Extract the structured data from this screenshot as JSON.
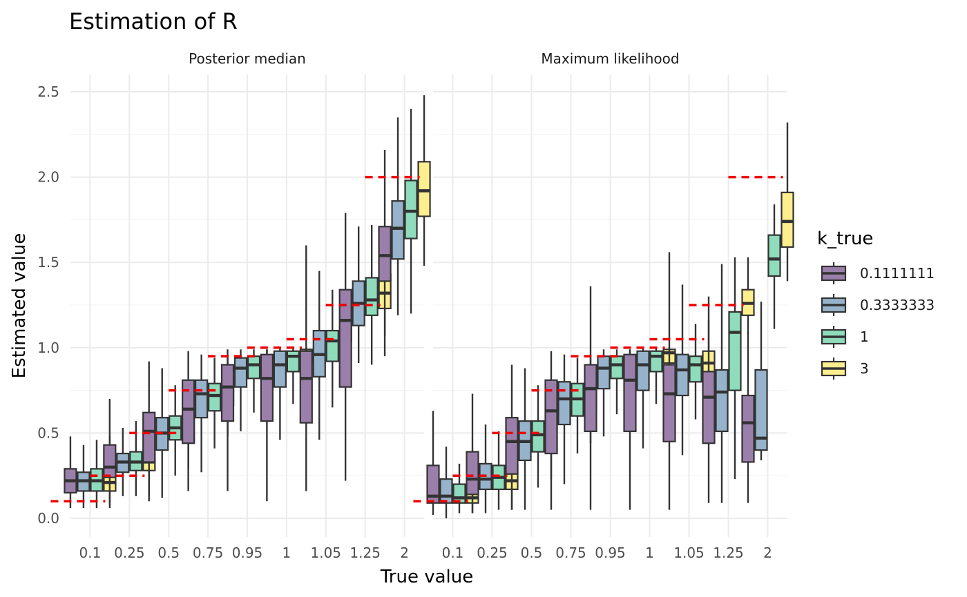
{
  "chart_data": {
    "type": "boxplot",
    "title": "Estimation of R",
    "xlabel": "True value",
    "ylabel": "Estimated value",
    "ylim": [
      -0.1,
      2.55
    ],
    "yticks": [
      "0.0",
      "0.5",
      "1.0",
      "1.5",
      "2.0",
      "2.5"
    ],
    "yticks_values": [
      0,
      0.5,
      1.0,
      1.5,
      2.0,
      2.5
    ],
    "categories": [
      "0.1",
      "0.25",
      "0.5",
      "0.75",
      "0.95",
      "1",
      "1.05",
      "1.25",
      "2"
    ],
    "true_values": [
      0.1,
      0.25,
      0.5,
      0.75,
      0.95,
      1.0,
      1.05,
      1.25,
      2.0
    ],
    "reference_color": "#ee0000",
    "legend": {
      "title": "k_true",
      "position": "right",
      "entries": [
        {
          "label": "0.1111111",
          "color": "#9b7fab"
        },
        {
          "label": "0.3333333",
          "color": "#96b3cb"
        },
        {
          "label": "1",
          "color": "#8fdcbc"
        },
        {
          "label": "3",
          "color": "#fdee8e"
        }
      ]
    },
    "panels": [
      {
        "name": "Posterior median",
        "boxes": [
          [
            [
              0.06,
              0.15,
              0.22,
              0.29,
              0.48
            ],
            [
              0.06,
              0.16,
              0.22,
              0.27,
              0.43
            ],
            [
              0.06,
              0.16,
              0.22,
              0.29,
              0.46
            ],
            [
              0.06,
              0.16,
              0.21,
              0.29,
              0.48
            ]
          ],
          [
            [
              0.08,
              0.24,
              0.3,
              0.43,
              0.7
            ],
            [
              0.13,
              0.27,
              0.33,
              0.38,
              0.53
            ],
            [
              0.13,
              0.28,
              0.33,
              0.39,
              0.57
            ],
            [
              0.13,
              0.28,
              0.33,
              0.38,
              0.53
            ]
          ],
          [
            [
              0.1,
              0.33,
              0.51,
              0.62,
              0.92
            ],
            [
              0.12,
              0.4,
              0.5,
              0.59,
              0.88
            ],
            [
              0.25,
              0.46,
              0.53,
              0.6,
              0.78
            ],
            [
              0.29,
              0.45,
              0.53,
              0.59,
              0.77
            ]
          ],
          [
            [
              0.16,
              0.44,
              0.64,
              0.81,
              0.98
            ],
            [
              0.27,
              0.59,
              0.73,
              0.81,
              0.96
            ],
            [
              0.41,
              0.63,
              0.72,
              0.79,
              0.94
            ],
            [
              0.48,
              0.66,
              0.74,
              0.8,
              0.94
            ]
          ],
          [
            [
              0.16,
              0.57,
              0.77,
              0.9,
              0.99
            ],
            [
              0.51,
              0.77,
              0.88,
              0.94,
              0.99
            ],
            [
              0.62,
              0.82,
              0.9,
              0.95,
              0.99
            ],
            [
              0.71,
              0.86,
              0.91,
              0.95,
              0.99
            ]
          ],
          [
            [
              0.1,
              0.57,
              0.82,
              0.96,
              0.99
            ],
            [
              0.46,
              0.77,
              0.9,
              0.98,
              1.0
            ],
            [
              0.67,
              0.86,
              0.95,
              0.98,
              1.0
            ],
            [
              0.77,
              0.91,
              0.96,
              0.99,
              1.0
            ]
          ],
          [
            [
              0.16,
              0.56,
              0.82,
              0.98,
              1.6
            ],
            [
              0.46,
              0.83,
              0.96,
              1.1,
              1.45
            ],
            [
              0.65,
              0.92,
              1.04,
              1.1,
              1.34
            ],
            [
              0.9,
              1.04,
              1.07,
              1.12,
              1.26
            ]
          ],
          [
            [
              0.22,
              0.77,
              1.16,
              1.34,
              1.79
            ],
            [
              0.91,
              1.13,
              1.26,
              1.39,
              1.71
            ],
            [
              0.9,
              1.19,
              1.28,
              1.41,
              1.72
            ],
            [
              1.07,
              1.23,
              1.32,
              1.43,
              1.7
            ]
          ],
          [
            [
              0.95,
              1.39,
              1.54,
              1.71,
              2.16
            ],
            [
              1.19,
              1.52,
              1.7,
              1.86,
              2.35
            ],
            [
              1.2,
              1.64,
              1.8,
              1.98,
              2.4
            ],
            [
              1.48,
              1.77,
              1.92,
              2.09,
              2.48
            ]
          ]
        ]
      },
      {
        "name": "Maximum likelihood",
        "boxes": [
          [
            [
              0.02,
              0.09,
              0.13,
              0.31,
              0.63
            ],
            [
              0.0,
              0.09,
              0.13,
              0.23,
              0.42
            ],
            [
              0.03,
              0.09,
              0.12,
              0.2,
              0.32
            ],
            [
              0.03,
              0.09,
              0.12,
              0.17,
              0.26
            ]
          ],
          [
            [
              0.03,
              0.14,
              0.23,
              0.39,
              0.73
            ],
            [
              0.03,
              0.17,
              0.23,
              0.32,
              0.55
            ],
            [
              0.05,
              0.17,
              0.24,
              0.31,
              0.51
            ],
            [
              0.05,
              0.17,
              0.22,
              0.31,
              0.5
            ]
          ],
          [
            [
              0.05,
              0.26,
              0.45,
              0.59,
              0.9
            ],
            [
              0.05,
              0.34,
              0.45,
              0.57,
              0.88
            ],
            [
              0.18,
              0.39,
              0.49,
              0.57,
              0.78
            ],
            [
              0.23,
              0.4,
              0.5,
              0.56,
              0.76
            ]
          ],
          [
            [
              0.05,
              0.38,
              0.63,
              0.81,
              0.98
            ],
            [
              0.2,
              0.55,
              0.7,
              0.8,
              0.96
            ],
            [
              0.38,
              0.6,
              0.7,
              0.79,
              0.94
            ],
            [
              0.44,
              0.64,
              0.73,
              0.79,
              0.94
            ]
          ],
          [
            [
              0.05,
              0.51,
              0.76,
              0.9,
              1.36
            ],
            [
              0.48,
              0.76,
              0.88,
              0.95,
              0.99
            ],
            [
              0.61,
              0.82,
              0.9,
              0.95,
              0.99
            ],
            [
              0.7,
              0.85,
              0.91,
              0.95,
              0.99
            ]
          ],
          [
            [
              0.05,
              0.51,
              0.81,
              0.96,
              0.99
            ],
            [
              0.41,
              0.75,
              0.9,
              0.98,
              1.0
            ],
            [
              0.67,
              0.86,
              0.95,
              0.98,
              1.0
            ],
            [
              0.77,
              0.91,
              0.97,
              0.99,
              1.0
            ]
          ],
          [
            [
              0.05,
              0.45,
              0.73,
              0.9,
              1.56
            ],
            [
              0.37,
              0.72,
              0.87,
              0.96,
              1.37
            ],
            [
              0.58,
              0.8,
              0.9,
              0.95,
              1.14
            ],
            [
              0.6,
              0.81,
              0.91,
              0.98,
              1.16
            ]
          ],
          [
            [
              0.09,
              0.44,
              0.71,
              0.86,
              1.3
            ],
            [
              0.09,
              0.51,
              0.74,
              0.87,
              1.49
            ],
            [
              0.23,
              0.75,
              1.09,
              1.21,
              1.53
            ],
            [
              1.08,
              1.19,
              1.26,
              1.34,
              1.53
            ]
          ],
          [
            [
              0.09,
              0.33,
              0.56,
              0.72,
              1.09
            ],
            [
              0.34,
              0.4,
              0.47,
              0.87,
              1.27
            ],
            [
              1.11,
              1.42,
              1.52,
              1.66,
              1.84
            ],
            [
              1.39,
              1.59,
              1.74,
              1.91,
              2.32
            ]
          ]
        ]
      }
    ]
  }
}
